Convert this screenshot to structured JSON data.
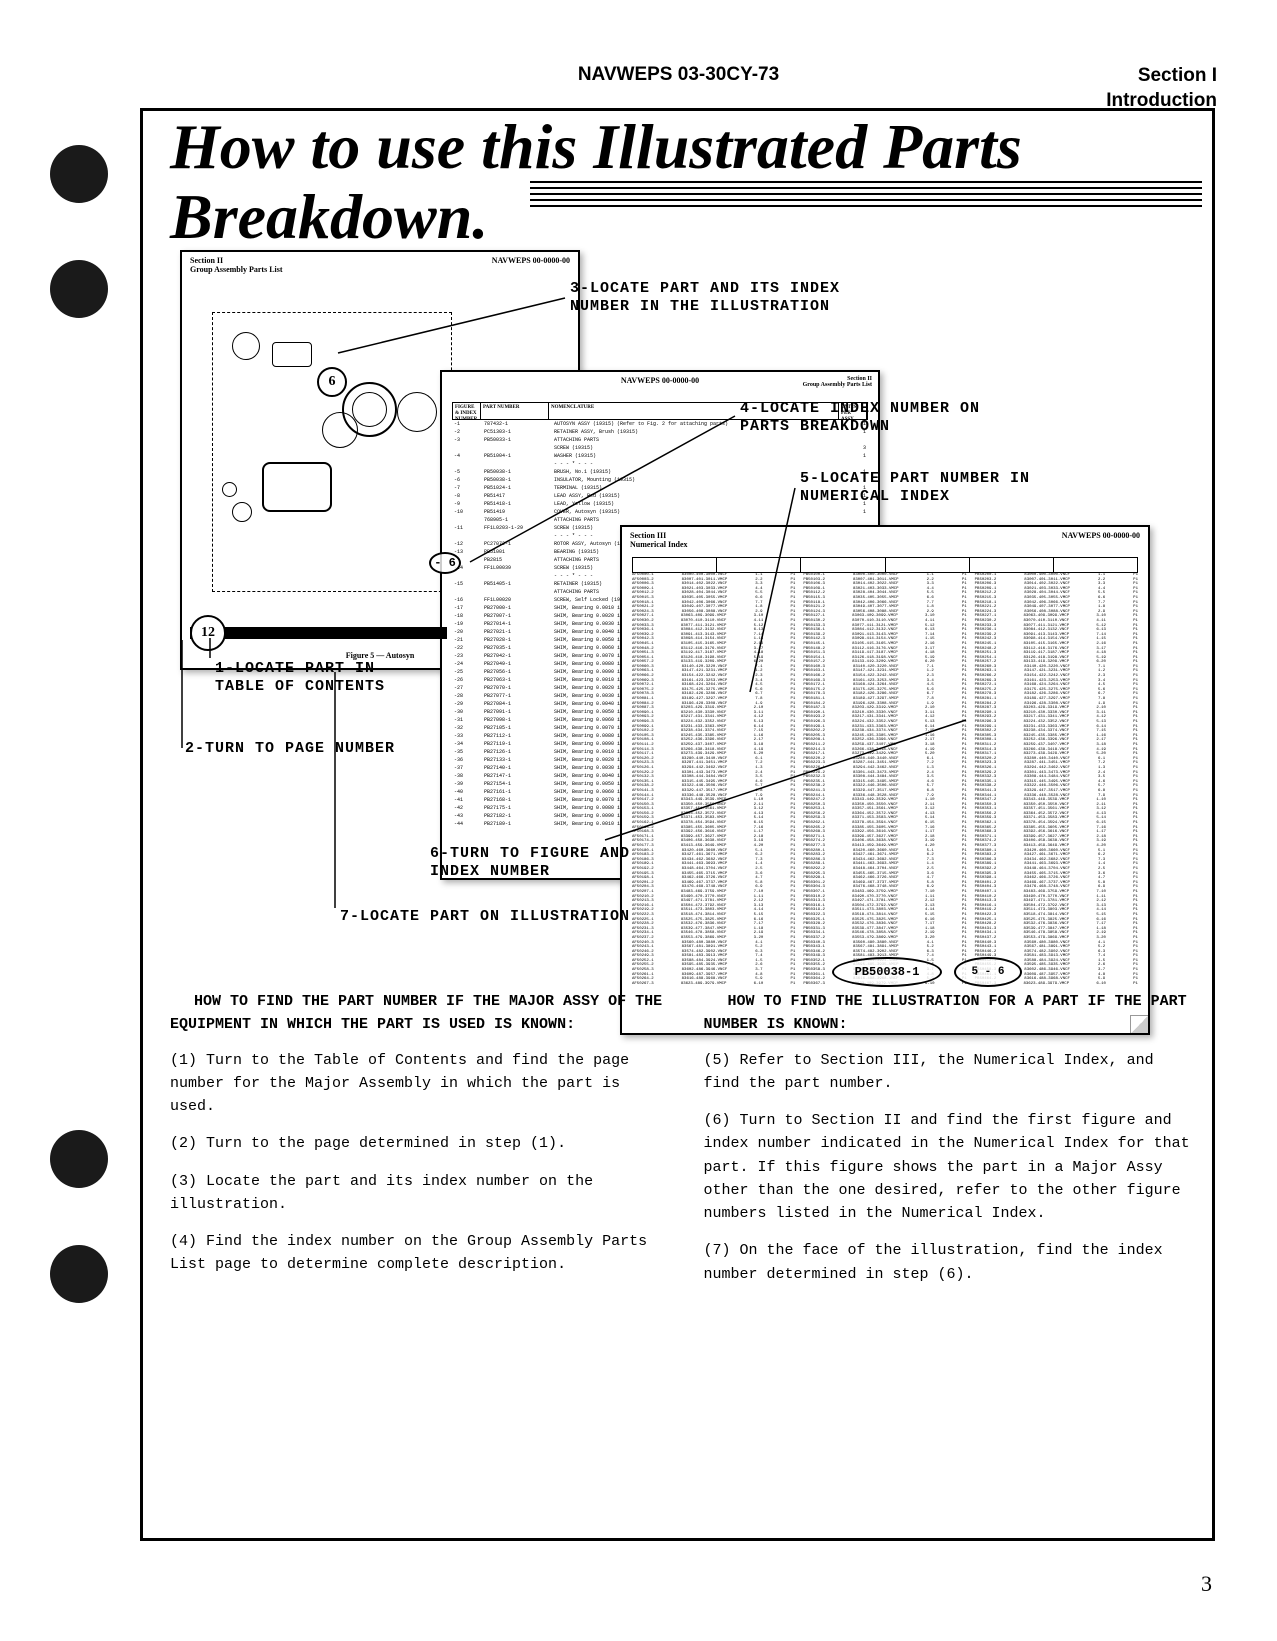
{
  "header": {
    "center": "NAVWEPS 03-30CY-73",
    "rightLine1": "Section I",
    "rightLine2": "Introduction"
  },
  "title": "How to use this Illustrated Parts Breakdown.",
  "docPages": {
    "page1": {
      "headerLeft": "Section II\nGroup Assembly Parts List",
      "headerRight": "NAVWEPS 00-0000-00",
      "figureLabel": "Figure 5 — Autosyn",
      "circle6": "6"
    },
    "page2": {
      "headerCenter": "NAVWEPS 00-0000-00",
      "headerRight": "Section II\nGroup Assembly Parts List",
      "oval6": "- 6"
    },
    "page3": {
      "headerLeft": "Section III\nNumerical Index",
      "headerRight": "NAVWEPS 00-0000-00",
      "highlightPart": "PB50038-1",
      "highlightFig": "5 - 6"
    }
  },
  "circle12": "12",
  "callouts": {
    "c1": "1-LOCATE PART IN TABLE OF CONTENTS",
    "c2": "2-TURN TO PAGE NUMBER",
    "c3": "3-LOCATE PART AND ITS INDEX NUMBER IN THE ILLUSTRATION",
    "c4": "4-LOCATE INDEX NUMBER ON PARTS BREAKDOWN",
    "c5": "5-LOCATE PART NUMBER IN NUMERICAL INDEX",
    "c6": "6-TURN TO FIGURE AND INDEX NUMBER",
    "c7": "7-LOCATE PART ON ILLUSTRATION"
  },
  "instructions": {
    "left": {
      "heading": "HOW TO FIND THE PART NUMBER IF THE MAJOR ASSY OF THE EQUIPMENT IN WHICH THE PART IS USED IS KNOWN:",
      "step1": "(1)  Turn to the Table of Contents and find the page number for the Major Assembly in which the part is used.",
      "step2": "(2)  Turn to the page determined in step (1).",
      "step3": "(3)  Locate the part  and its index number on the illustration.",
      "step4": "(4)  Find the index number on the Group Assembly Parts List page to determine complete description."
    },
    "right": {
      "heading": "HOW TO FIND THE ILLUSTRATION FOR A PART IF THE PART NUMBER IS KNOWN:",
      "step5": "(5)  Refer to Section III, the Numerical Index, and find the part number.",
      "step6": "(6)  Turn to Section II and find the first figure and index number indicated in the Numerical Index for that part. If this figure shows the part in a Major Assy other than the one desired, refer to the other figure numbers listed in the Numerical Index.",
      "step7": "(7)  On the face of the illustration, find the index number determined in step (6)."
    }
  },
  "pageNumber": "3",
  "mockRows": {
    "partsList": [
      {
        "idx": "-1",
        "part": "787432-1",
        "desc": "AUTOSYN ASSY  (19315) (Refer to Fig. 2 for attaching parts)",
        "qty": "1"
      },
      {
        "idx": "-2",
        "part": "PC51303-1",
        "desc": "RETAINER ASSY, Brush (19315)",
        "qty": "1"
      },
      {
        "idx": "-3",
        "part": "PB50033-1",
        "desc": "ATTACHING PARTS",
        "qty": ""
      },
      {
        "idx": "",
        "part": "",
        "desc": "SCREW  (19315)",
        "qty": "3"
      },
      {
        "idx": "-4",
        "part": "PB51004-1",
        "desc": "WASHER  (19315)",
        "qty": "1"
      },
      {
        "idx": "",
        "part": "",
        "desc": "- - - * - - -",
        "qty": ""
      },
      {
        "idx": "-5",
        "part": "PB50038-1",
        "desc": "BRUSH, No.1 (19315)",
        "qty": "1"
      },
      {
        "idx": "-6",
        "part": "PB50038-1",
        "desc": "INSULATOR, Mounting (19315)",
        "qty": "2"
      },
      {
        "idx": "-7",
        "part": "PB51024-1",
        "desc": "TERMINAL  (19315)",
        "qty": "1"
      },
      {
        "idx": "-8",
        "part": "PB51417",
        "desc": "LEAD ASSY, Red  (19315)",
        "qty": "1"
      },
      {
        "idx": "-9",
        "part": "PB51418-1",
        "desc": "LEAD, Yellow  (19315)",
        "qty": "1"
      },
      {
        "idx": "-10",
        "part": "PB51419",
        "desc": "COVER, Autosyn  (19315)",
        "qty": "1"
      },
      {
        "idx": "",
        "part": "768905-1",
        "desc": "ATTACHING PARTS",
        "qty": ""
      },
      {
        "idx": "-11",
        "part": "FF1L0203-1-29",
        "desc": "SCREW  (19315)",
        "qty": "3"
      },
      {
        "idx": "",
        "part": "",
        "desc": "- - - * - - -",
        "qty": ""
      },
      {
        "idx": "-12",
        "part": "PC27072-1",
        "desc": "ROTOR ASSY, Autosyn (19315)",
        "qty": "1"
      },
      {
        "idx": "-13",
        "part": "PB51001",
        "desc": "BEARING  (19315)",
        "qty": "2"
      },
      {
        "idx": "",
        "part": "PB2815",
        "desc": "ATTACHING PARTS",
        "qty": ""
      },
      {
        "idx": "-14",
        "part": "FF1L00039",
        "desc": "SCREW  (19315)",
        "qty": "2"
      },
      {
        "idx": "",
        "part": "",
        "desc": "- - - * - - -",
        "qty": ""
      },
      {
        "idx": "-15",
        "part": "PB51405-1",
        "desc": "RETAINER  (19315)",
        "qty": "1"
      },
      {
        "idx": "",
        "part": "",
        "desc": "ATTACHING PARTS",
        "qty": ""
      },
      {
        "idx": "-16",
        "part": "FF1L00020",
        "desc": "SCREW, Self Locked (19315)",
        "qty": "1"
      }
    ]
  }
}
